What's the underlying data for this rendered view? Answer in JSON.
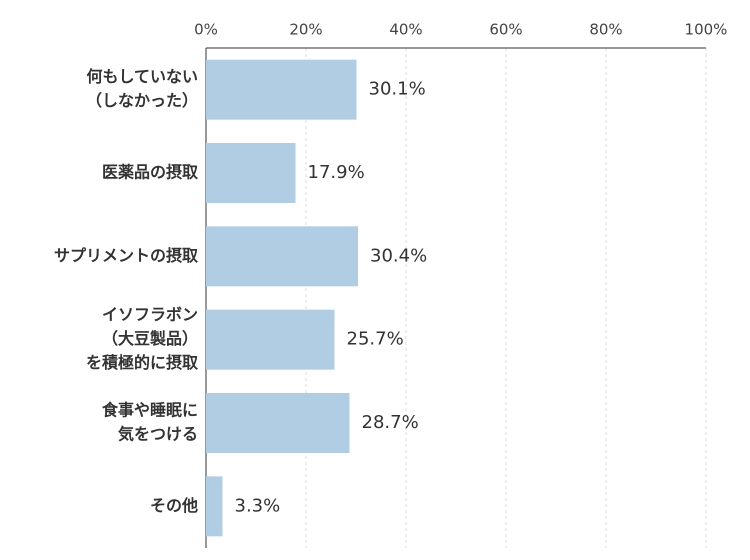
{
  "chart_data": {
    "type": "bar",
    "orientation": "horizontal",
    "categories": [
      [
        "何もしていない",
        "（しなかった）"
      ],
      [
        "医薬品の摂取"
      ],
      [
        "サプリメントの摂取"
      ],
      [
        "イソフラボン",
        "（大豆製品）",
        "を積極的に摂取"
      ],
      [
        "食事や睡眠に",
        "気をつける"
      ],
      [
        "その他"
      ]
    ],
    "values": [
      30.1,
      17.9,
      30.4,
      25.7,
      28.7,
      3.3
    ],
    "value_labels": [
      "30.1%",
      "17.9%",
      "30.4%",
      "25.7%",
      "28.7%",
      "3.3%"
    ],
    "color": "#b0cde3",
    "xlim": [
      0,
      100
    ],
    "xticks": [
      {
        "value": 0,
        "label": "0%"
      },
      {
        "value": 20,
        "label": "20%"
      },
      {
        "value": 40,
        "label": "40%"
      },
      {
        "value": 60,
        "label": "60%"
      },
      {
        "value": 80,
        "label": "80%"
      },
      {
        "value": 100,
        "label": "100%"
      }
    ],
    "grid": true
  }
}
